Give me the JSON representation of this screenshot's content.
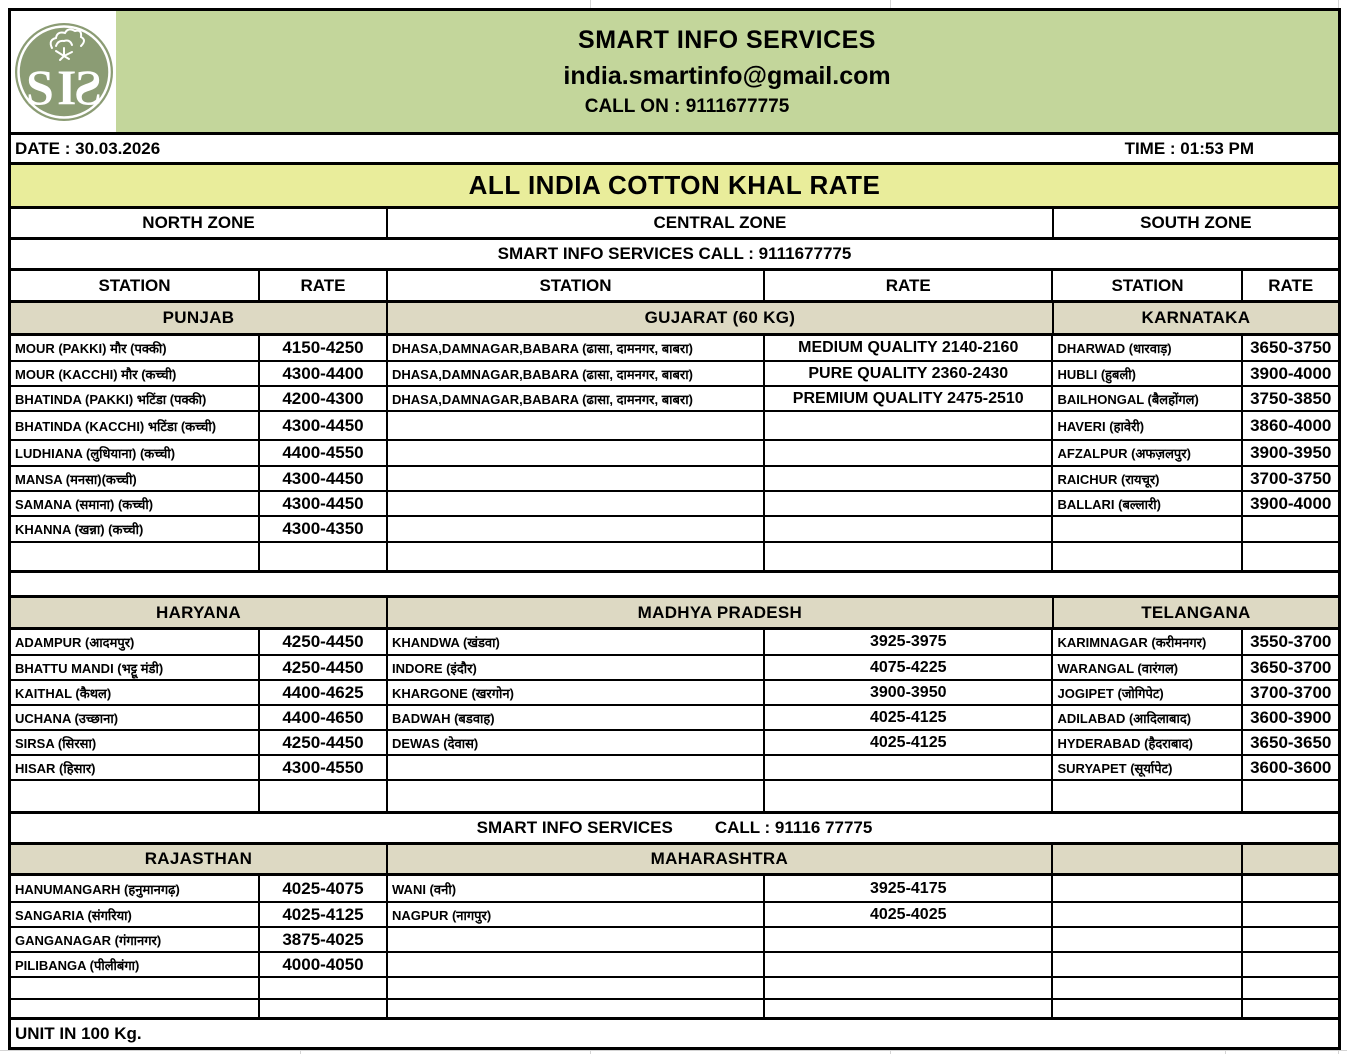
{
  "header": {
    "company": "SMART INFO SERVICES",
    "email": "india.smartinfo@gmail.com",
    "call": "CALL ON : 9111677775",
    "date": "DATE : 30.03.2026",
    "time": "TIME : 01:53 PM",
    "logo_letters": "SIS"
  },
  "title": "ALL INDIA COTTON KHAL RATE",
  "zones": [
    "NORTH ZONE",
    "CENTRAL ZONE",
    "SOUTH ZONE"
  ],
  "call_banner_top": "SMART INFO SERVICES CALL : 9111677775",
  "call_banner_mid": {
    "left": "SMART INFO SERVICES",
    "right": "CALL : 91116 77775"
  },
  "column_headers": [
    "STATION",
    "RATE",
    "STATION",
    "RATE",
    "STATION",
    "RATE"
  ],
  "unit_note": "UNIT IN 100 Kg.",
  "colors": {
    "band_green": "#c3d69b",
    "title_yellow": "#e9ed9b",
    "section_beige": "#ddd9c3",
    "logo_green": "#8b9c74",
    "border_black": "#000000"
  },
  "blocks": [
    {
      "sections": [
        "PUNJAB",
        "GUJARAT (60 KG)",
        "KARNATAKA"
      ],
      "rows": [
        [
          "MOUR (PAKKI) मौर (पक्की)",
          "4150-4250",
          "DHASA,DAMNAGAR,BABARA (ढासा, दामनगर, बाबरा)",
          "MEDIUM QUALITY 2140-2160",
          "DHARWAD (धारवाड़)",
          "3650-3750"
        ],
        [
          "MOUR (KACCHI) मौर (कच्ची)",
          "4300-4400",
          "DHASA,DAMNAGAR,BABARA (ढासा, दामनगर, बाबरा)",
          "PURE QUALITY 2360-2430",
          "HUBLI (हुबली)",
          "3900-4000"
        ],
        [
          "BHATINDA (PAKKI) भटिंडा (पक्की)",
          "4200-4300",
          "DHASA,DAMNAGAR,BABARA (ढासा, दामनगर, बाबरा)",
          "PREMIUM QUALITY 2475-2510",
          "BAILHONGAL (बैलहोंगल)",
          "3750-3850"
        ],
        [
          "BHATINDA (KACCHI) भटिंडा (कच्ची)",
          "4300-4450",
          "",
          "",
          "HAVERI (हावेरी)",
          "3860-4000"
        ],
        [
          "LUDHIANA (लुधियाना) (कच्ची)",
          "4400-4550",
          "",
          "",
          "AFZALPUR (अफज़लपुर)",
          "3900-3950"
        ],
        [
          "MANSA (मनसा)(कच्ची)",
          "4300-4450",
          "",
          "",
          "RAICHUR (रायचूर)",
          "3700-3750"
        ],
        [
          "SAMANA (समाना) (कच्ची)",
          "4300-4450",
          "",
          "",
          "BALLARI (बल्लारी)",
          "3900-4000"
        ],
        [
          "KHANNA (खन्ना) (कच्ची)",
          "4300-4350",
          "",
          "",
          "",
          ""
        ],
        [
          "",
          "",
          "",
          "",
          "",
          ""
        ]
      ]
    },
    {
      "sections": [
        "HARYANA",
        "MADHYA PRADESH",
        "TELANGANA"
      ],
      "rows": [
        [
          "ADAMPUR (आदमपुर)",
          "4250-4450",
          "KHANDWA (खंडवा)",
          "3925-3975",
          "KARIMNAGAR (करीमनगर)",
          "3550-3700"
        ],
        [
          "BHATTU MANDI (भट्टू मंडी)",
          "4250-4450",
          "INDORE (इंदौर)",
          "4075-4225",
          "WARANGAL (वारंगल)",
          "3650-3700"
        ],
        [
          "KAITHAL (कैथल)",
          "4400-4625",
          "KHARGONE (खरगोन)",
          "3900-3950",
          "JOGIPET (जोगिपेट)",
          "3700-3700"
        ],
        [
          "UCHANA (उच्छाना)",
          "4400-4650",
          "BADWAH (बडवाह)",
          "4025-4125",
          "ADILABAD (आदिलाबाद)",
          "3600-3900"
        ],
        [
          "SIRSA (सिरसा)",
          "4250-4450",
          "DEWAS (देवास)",
          "4025-4125",
          "HYDERABAD (हैदराबाद)",
          "3650-3650"
        ],
        [
          "HISAR (हिसार)",
          "4300-4550",
          "",
          "",
          "SURYAPET (सूर्यापेट)",
          "3600-3600"
        ],
        [
          "",
          "",
          "",
          "",
          "",
          ""
        ]
      ]
    },
    {
      "sections": [
        "RAJASTHAN",
        "MAHARASHTRA",
        ""
      ],
      "rows": [
        [
          "HANUMANGARH (हनुमानगढ़)",
          "4025-4075",
          "WANI (वनी)",
          "3925-4175",
          "",
          ""
        ],
        [
          "SANGARIA (संगरिया)",
          "4025-4125",
          "NAGPUR (नागपुर)",
          "4025-4025",
          "",
          ""
        ],
        [
          "GANGANAGAR (गंगानगर)",
          "3875-4025",
          "",
          "",
          "",
          ""
        ],
        [
          "PILIBANGA (पीलीबंगा)",
          "4000-4050",
          "",
          "",
          "",
          ""
        ],
        [
          "",
          "",
          "",
          "",
          "",
          ""
        ],
        [
          "",
          "",
          "",
          "",
          "",
          ""
        ]
      ]
    }
  ]
}
